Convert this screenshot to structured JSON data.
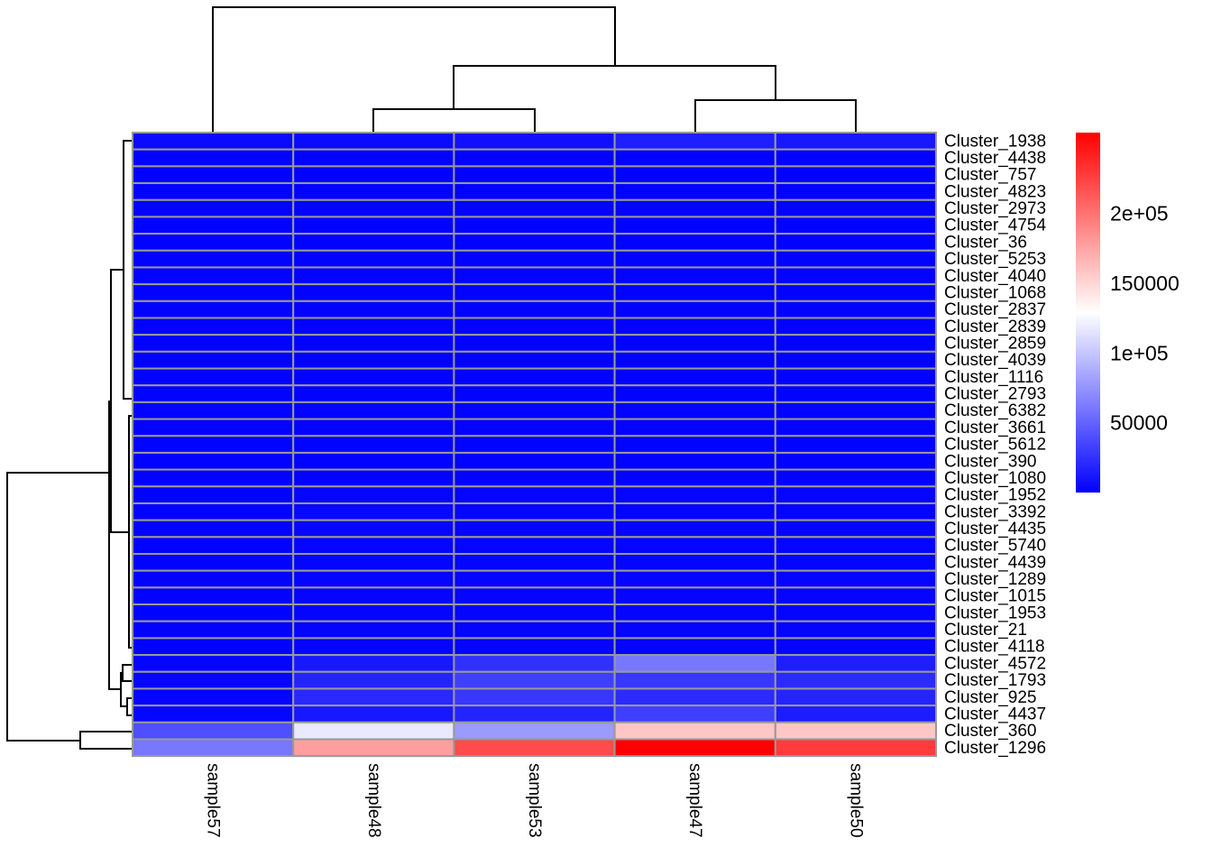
{
  "chart_data": {
    "type": "heatmap",
    "title": "",
    "columns": [
      "sample57",
      "sample48",
      "sample53",
      "sample47",
      "sample50"
    ],
    "rows": [
      "Cluster_1938",
      "Cluster_4438",
      "Cluster_757",
      "Cluster_4823",
      "Cluster_2973",
      "Cluster_4754",
      "Cluster_36",
      "Cluster_5253",
      "Cluster_4040",
      "Cluster_1068",
      "Cluster_2837",
      "Cluster_2839",
      "Cluster_2859",
      "Cluster_4039",
      "Cluster_1116",
      "Cluster_2793",
      "Cluster_6382",
      "Cluster_3661",
      "Cluster_5612",
      "Cluster_390",
      "Cluster_1080",
      "Cluster_1952",
      "Cluster_3392",
      "Cluster_4435",
      "Cluster_5740",
      "Cluster_4439",
      "Cluster_1289",
      "Cluster_1015",
      "Cluster_1953",
      "Cluster_21",
      "Cluster_4118",
      "Cluster_4572",
      "Cluster_1793",
      "Cluster_925",
      "Cluster_4437",
      "Cluster_360",
      "Cluster_1296"
    ],
    "values": [
      [
        5000,
        5000,
        8000,
        15000,
        12000
      ],
      [
        1000,
        1000,
        1000,
        1000,
        1000
      ],
      [
        1000,
        1000,
        1000,
        1000,
        1000
      ],
      [
        1000,
        1000,
        1000,
        1000,
        1000
      ],
      [
        1000,
        1000,
        1000,
        1000,
        1000
      ],
      [
        1000,
        1000,
        1000,
        1000,
        1000
      ],
      [
        1000,
        1000,
        1000,
        1000,
        1000
      ],
      [
        1000,
        1000,
        1000,
        1000,
        1000
      ],
      [
        1000,
        1000,
        1000,
        1000,
        1000
      ],
      [
        1000,
        1000,
        1000,
        1000,
        1000
      ],
      [
        1000,
        1000,
        1000,
        1000,
        1000
      ],
      [
        1000,
        1000,
        1000,
        1000,
        1000
      ],
      [
        1000,
        1000,
        1000,
        1000,
        1000
      ],
      [
        1000,
        1000,
        1000,
        1000,
        1000
      ],
      [
        1000,
        1000,
        1000,
        1000,
        1000
      ],
      [
        1000,
        1000,
        1000,
        1000,
        1000
      ],
      [
        1000,
        1000,
        1000,
        1000,
        1000
      ],
      [
        1000,
        1000,
        1000,
        1000,
        1000
      ],
      [
        1000,
        1000,
        1000,
        1000,
        1000
      ],
      [
        1000,
        1000,
        1000,
        1000,
        1000
      ],
      [
        1000,
        1000,
        1000,
        1000,
        1000
      ],
      [
        1000,
        2000,
        2000,
        2000,
        2000
      ],
      [
        1000,
        4000,
        3000,
        2000,
        2000
      ],
      [
        1000,
        3000,
        2000,
        2000,
        2000
      ],
      [
        1000,
        2000,
        2000,
        2000,
        2000
      ],
      [
        1000,
        2000,
        2000,
        2000,
        2000
      ],
      [
        1000,
        2000,
        2000,
        2000,
        2000
      ],
      [
        1000,
        2000,
        2000,
        2000,
        2000
      ],
      [
        1000,
        2000,
        2000,
        2000,
        2000
      ],
      [
        1000,
        2000,
        2000,
        2000,
        2000
      ],
      [
        1000,
        2000,
        2000,
        2000,
        2000
      ],
      [
        2000,
        12000,
        25000,
        60000,
        15000
      ],
      [
        3000,
        18000,
        32000,
        28000,
        22000
      ],
      [
        2000,
        20000,
        28000,
        22000,
        18000
      ],
      [
        3000,
        12000,
        18000,
        32000,
        14000
      ],
      [
        40000,
        118000,
        78000,
        158000,
        158000
      ],
      [
        60000,
        178000,
        220000,
        258000,
        228000
      ]
    ],
    "colorbar": {
      "min": 0,
      "max": 258000,
      "ticks": [
        {
          "value": 50000,
          "label": "50000"
        },
        {
          "value": 100000,
          "label": "1e+05"
        },
        {
          "value": 150000,
          "label": "150000"
        },
        {
          "value": 200000,
          "label": "2e+05"
        }
      ],
      "colors": [
        "#0000ff",
        "#ffffff",
        "#ff0000"
      ]
    },
    "cell_border_color": "#999999",
    "legend_position": "right",
    "column_dendrogram": true,
    "row_dendrogram": true
  }
}
